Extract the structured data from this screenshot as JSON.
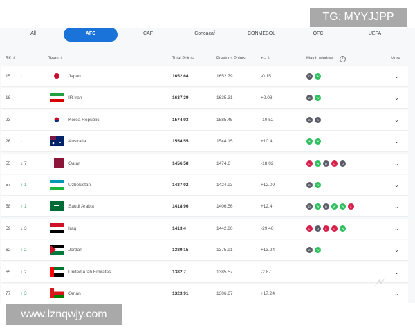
{
  "watermarks": {
    "tg": "TG: MYYJJPP",
    "url": "www.lznqwjy.com",
    "logo": "九游"
  },
  "tabs": [
    {
      "label": "All"
    },
    {
      "label": "AFC",
      "active": true
    },
    {
      "label": "CAF"
    },
    {
      "label": "Concacaf"
    },
    {
      "label": "CONMEBOL"
    },
    {
      "label": "OFC"
    },
    {
      "label": "UEFA"
    }
  ],
  "colors": {
    "accent": "#1a73d9",
    "win": "#2fbf5f",
    "draw": "#5a5d66",
    "loss": "#d81e4a"
  },
  "headers": {
    "rk": "RK ⇕",
    "team": "Team ⇕",
    "total": "Total Points",
    "previous": "Previous Points",
    "diff": "+/- ⇕",
    "match_window": "Match window",
    "info_icon": "i",
    "more": "More"
  },
  "rows": [
    {
      "rk": "15",
      "change": "-",
      "team": "Japan",
      "total": "1652.64",
      "previous": "1652.79",
      "diff": "-0.15",
      "flag": "japan",
      "results": [
        "D",
        "W"
      ]
    },
    {
      "rk": "18",
      "change": "-",
      "team": "IR Iran",
      "total": "1637.39",
      "previous": "1635.31",
      "diff": "+2.08",
      "flag": "iran",
      "results": [
        "D",
        "W"
      ]
    },
    {
      "rk": "23",
      "change": "-",
      "team": "Korea Republic",
      "total": "1574.93",
      "previous": "1585.45",
      "diff": "-10.52",
      "flag": "korea",
      "results": [
        "D",
        "D"
      ]
    },
    {
      "rk": "26",
      "change": "-",
      "team": "Australia",
      "total": "1554.55",
      "previous": "1544.15",
      "diff": "+10.4",
      "flag": "australia",
      "results": [
        "W",
        "W"
      ]
    },
    {
      "rk": "55",
      "change": "↓ 7",
      "team": "Qatar",
      "total": "1456.58",
      "previous": "1474.6",
      "diff": "-18.02",
      "flag": "qatar",
      "results": [
        "L",
        "W",
        "D",
        "L",
        "D"
      ]
    },
    {
      "rk": "57",
      "change": "↑ 1",
      "team": "Uzbekistan",
      "total": "1437.02",
      "previous": "1424.93",
      "diff": "+12.09",
      "flag": "uzbekistan",
      "results": [
        "D",
        "W"
      ]
    },
    {
      "rk": "58",
      "change": "↑ 1",
      "team": "Saudi Arabia",
      "total": "1418.96",
      "previous": "1406.56",
      "diff": "+12.4",
      "flag": "saudi",
      "results": [
        "D",
        "W",
        "D",
        "W",
        "W",
        "L"
      ]
    },
    {
      "rk": "59",
      "change": "↓ 3",
      "team": "Iraq",
      "total": "1413.4",
      "previous": "1442.86",
      "diff": "-29.46",
      "flag": "iraq",
      "results": [
        "L",
        "D",
        "L",
        "L",
        "W"
      ]
    },
    {
      "rk": "62",
      "change": "↑ 2",
      "team": "Jordan",
      "total": "1389.15",
      "previous": "1375.91",
      "diff": "+13.24",
      "flag": "jordan",
      "results": [
        "D",
        "W"
      ]
    },
    {
      "rk": "65",
      "change": "↓ 2",
      "team": "United Arab Emirates",
      "total": "1382.7",
      "previous": "1385.57",
      "diff": "-2.87",
      "flag": "uae",
      "results": []
    },
    {
      "rk": "77",
      "change": "↑ 3",
      "team": "Oman",
      "total": "1323.91",
      "previous": "1306.67",
      "diff": "+17.24",
      "flag": "oman",
      "results": []
    }
  ]
}
